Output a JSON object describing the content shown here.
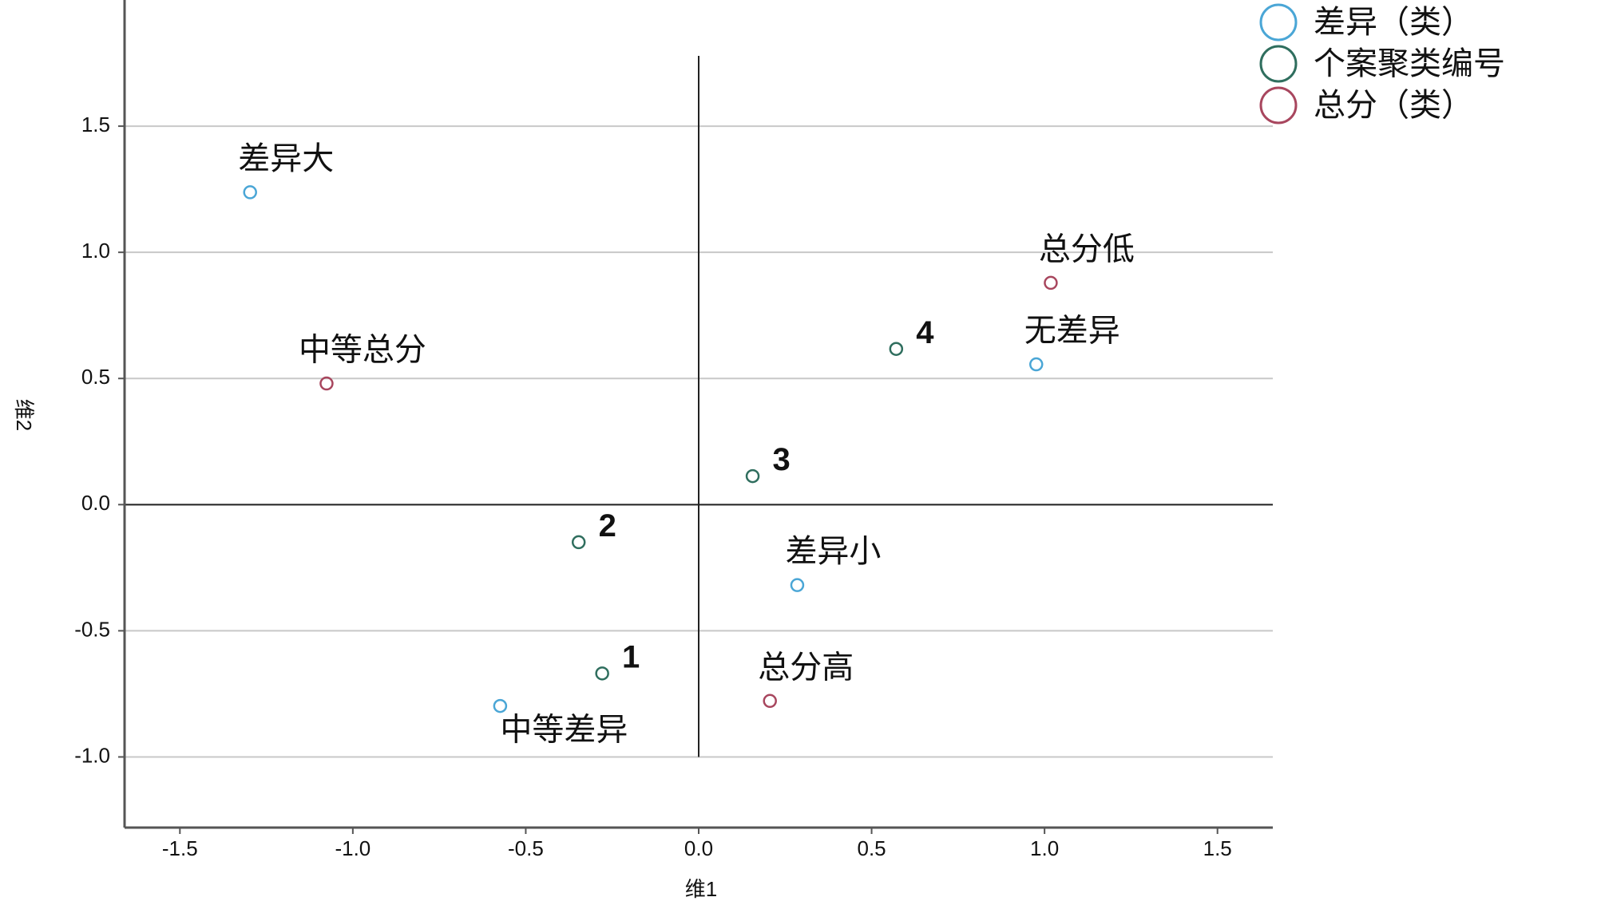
{
  "chart_data": {
    "type": "scatter",
    "xlabel": "维1",
    "ylabel": "维2",
    "xlim": [
      -1.66,
      1.66
    ],
    "ylim": [
      -1.28,
      2.0
    ],
    "xticks": [
      -1.5,
      {
        "value": -1.0,
        "label": "-1.0"
      },
      -0.5,
      {
        "value": 0.0,
        "label": "0.0"
      },
      0.5,
      {
        "value": 1.0,
        "label": "1.0"
      },
      1.5
    ],
    "yticks": [
      {
        "value": -1.0,
        "label": "-1.0"
      },
      -0.5,
      {
        "value": 0.0,
        "label": "0.0"
      },
      0.5,
      {
        "value": 1.0,
        "label": "1.0"
      },
      1.5
    ],
    "grid": true,
    "legend": "top-right",
    "series": [
      {
        "name": "差异（类）",
        "color": "#4aa6d6",
        "labels": [
          "差异大",
          "无差异",
          "差异小",
          "中等差异"
        ],
        "x": [
          -1.297,
          0.976,
          0.285,
          -0.574
        ],
        "values": [
          1.238,
          0.556,
          -0.319,
          -0.798
        ]
      },
      {
        "name": "个案聚类编号",
        "color": "#2f6e5e",
        "labels": [
          "1",
          "2",
          "3",
          "4"
        ],
        "x": [
          -0.279,
          -0.347,
          0.156,
          0.571
        ],
        "values": [
          -0.669,
          -0.149,
          0.113,
          0.617
        ]
      },
      {
        "name": "总分（类）",
        "color": "#a8465e",
        "labels": [
          "中等总分",
          "总分低",
          "总分高"
        ],
        "x": [
          -1.076,
          1.018,
          0.206
        ],
        "values": [
          0.48,
          0.879,
          -0.778
        ]
      }
    ]
  }
}
